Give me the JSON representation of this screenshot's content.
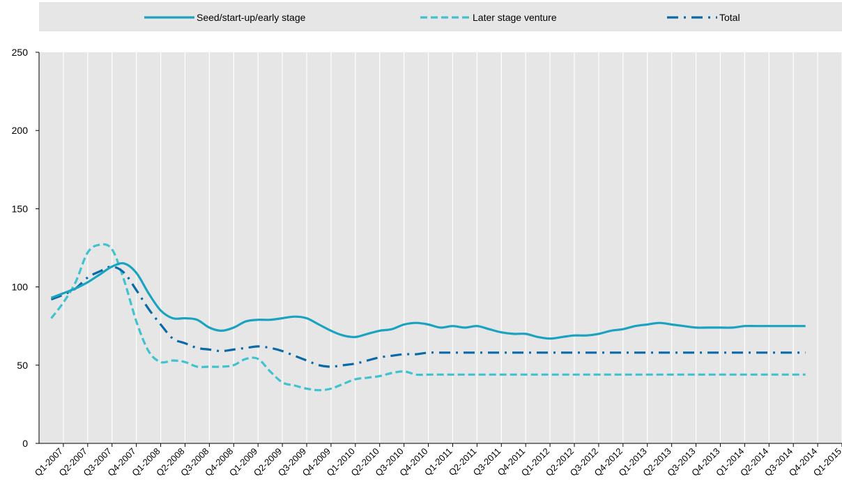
{
  "legend": {
    "items": [
      {
        "label": "Seed/start-up/early stage",
        "color": "#1aa3c0",
        "style": "solid"
      },
      {
        "label": "Later stage venture",
        "color": "#40c3cf",
        "style": "dashed"
      },
      {
        "label": "Total",
        "color": "#0a6aa8",
        "style": "dash-dot"
      }
    ]
  },
  "chart_data": {
    "type": "line",
    "title": "",
    "xlabel": "",
    "ylabel": "",
    "legend_position": "top",
    "grid": "vertical",
    "ylim": [
      0,
      250
    ],
    "yticks": [
      0,
      50,
      100,
      150,
      200,
      250
    ],
    "categories": [
      "Q1-2007",
      "Q2-2007",
      "Q3-2007",
      "Q4-2007",
      "Q1-2008",
      "Q2-2008",
      "Q3-2008",
      "Q4-2008",
      "Q1-2009",
      "Q2-2009",
      "Q3-2009",
      "Q4-2009",
      "Q1-2010",
      "Q2-2010",
      "Q3-2010",
      "Q4-2010",
      "Q1-2011",
      "Q2-2011",
      "Q3-2011",
      "Q4-2011",
      "Q1-2012",
      "Q2-2012",
      "Q3-2012",
      "Q4-2012",
      "Q1-2013",
      "Q2-2013",
      "Q3-2013",
      "Q4-2013",
      "Q1-2014",
      "Q2-2014",
      "Q3-2014",
      "Q4-2014",
      "Q1-2015"
    ],
    "x": [
      0.5,
      1,
      1.5,
      2,
      2.5,
      3,
      3.5,
      4,
      4.5,
      5,
      5.5,
      6,
      6.5,
      7,
      7.5,
      8,
      8.5,
      9,
      9.5,
      10,
      10.5,
      11,
      11.5,
      12,
      12.5,
      13,
      13.5,
      14,
      14.5,
      15,
      15.5,
      16,
      16.5,
      17,
      17.5,
      18,
      18.5,
      19,
      19.5,
      20,
      20.5,
      21,
      21.5,
      22,
      22.5,
      23,
      23.5,
      24,
      24.5,
      25,
      25.5,
      26,
      26.5,
      27,
      27.5,
      28,
      28.5,
      29,
      29.5,
      30,
      30.5,
      31,
      31.5
    ],
    "series": [
      {
        "name": "Seed/start-up/early stage",
        "color": "#1aa3c0",
        "style": "solid",
        "values": [
          93,
          96,
          99,
          103,
          108,
          113,
          115,
          109,
          96,
          85,
          80,
          80,
          79,
          74,
          72,
          74,
          78,
          79,
          79,
          80,
          81,
          80,
          76,
          72,
          69,
          68,
          70,
          72,
          73,
          76,
          77,
          76,
          74,
          75,
          74,
          75,
          73,
          71,
          70,
          70,
          68,
          67,
          68,
          69,
          69,
          70,
          72,
          73,
          75,
          76,
          77,
          76,
          75,
          74,
          74,
          74,
          74,
          75,
          75,
          75,
          75,
          75,
          75
        ]
      },
      {
        "name": "Later stage venture",
        "color": "#40c3cf",
        "style": "dashed",
        "values": [
          80,
          90,
          103,
          122,
          127,
          124,
          104,
          78,
          59,
          52,
          53,
          52,
          49,
          49,
          49,
          50,
          54,
          54,
          46,
          39,
          37,
          35,
          34,
          35,
          38,
          41,
          42,
          43,
          45,
          46,
          44,
          44,
          44,
          44,
          44,
          44,
          44,
          44,
          44,
          44,
          44,
          44,
          44,
          44,
          44,
          44,
          44,
          44,
          44,
          44,
          44,
          44,
          44,
          44,
          44,
          44,
          44,
          44,
          44,
          44,
          44,
          44,
          44
        ]
      },
      {
        "name": "Total",
        "color": "#0a6aa8",
        "style": "dash-dot",
        "values": [
          92,
          95,
          99,
          106,
          110,
          113,
          109,
          98,
          86,
          76,
          67,
          64,
          61,
          60,
          59,
          60,
          61,
          62,
          61,
          59,
          56,
          53,
          50,
          49,
          50,
          51,
          53,
          55,
          56,
          57,
          57,
          58,
          58,
          58,
          58,
          58,
          58,
          58,
          58,
          58,
          58,
          58,
          58,
          58,
          58,
          58,
          58,
          58,
          58,
          58,
          58,
          58,
          58,
          58,
          58,
          58,
          58,
          58,
          58,
          58,
          58,
          58,
          58
        ]
      }
    ]
  }
}
